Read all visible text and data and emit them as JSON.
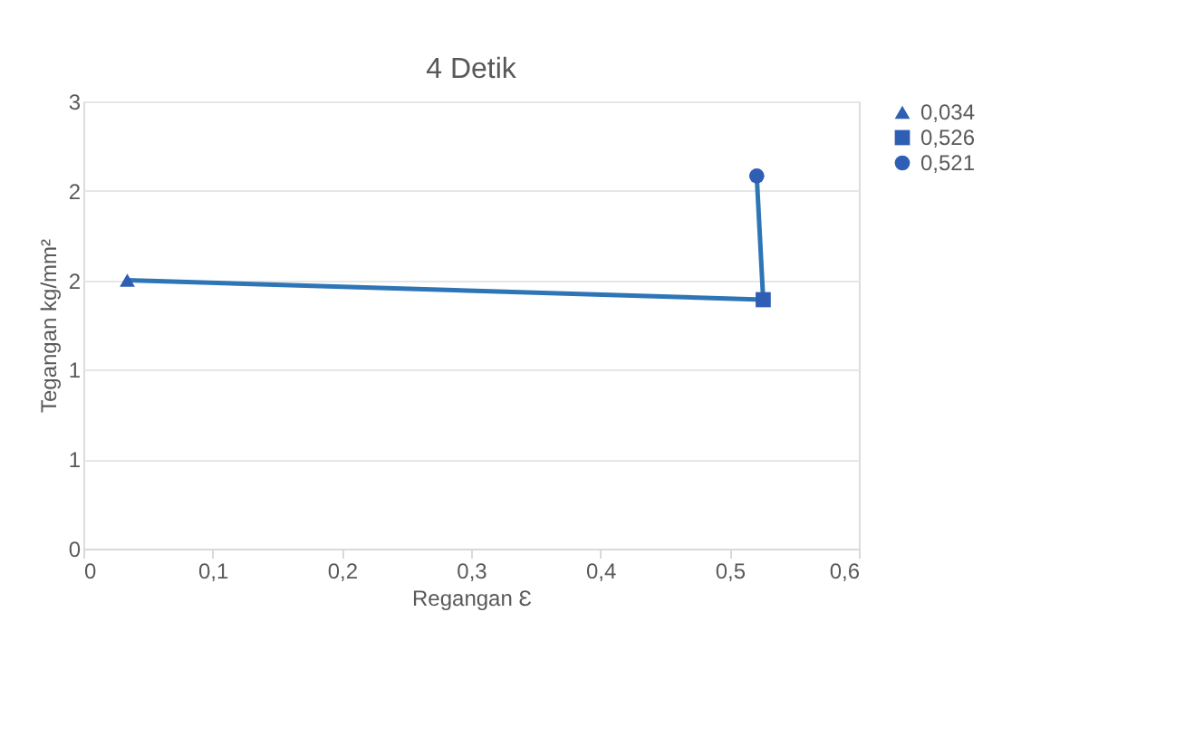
{
  "chart_data": {
    "type": "line",
    "title": "4 Detik",
    "xlabel": "Regangan Ɛ",
    "ylabel": "Tegangan kg/mm²",
    "xlim": [
      0,
      0.6
    ],
    "xticks": [
      {
        "value": 0,
        "label": "0"
      },
      {
        "value": 0.1,
        "label": "0,1"
      },
      {
        "value": 0.2,
        "label": "0,2"
      },
      {
        "value": 0.3,
        "label": "0,3"
      },
      {
        "value": 0.4,
        "label": "0,4"
      },
      {
        "value": 0.5,
        "label": "0,5"
      },
      {
        "value": 0.6,
        "label": "0,6"
      }
    ],
    "ylim": [
      0,
      3
    ],
    "yticks": [
      0,
      {
        "value": 0.6,
        "label": "1"
      },
      {
        "value": 1.2,
        "label": "1"
      },
      {
        "value": 1.8,
        "label": "2"
      },
      {
        "value": 2.4,
        "label": "2"
      },
      3
    ],
    "grid": "y",
    "legend": "right",
    "series": [
      {
        "color": "#2e75b6",
        "x": [
          0.034,
          0.526,
          0.521
        ],
        "values": [
          1.8,
          1.67,
          2.5
        ],
        "marker": "none",
        "line_style": "solid"
      },
      {
        "type": "scatter",
        "name": "0,034",
        "color": "#2f5eb5",
        "x": [
          0.034
        ],
        "values": [
          1.8
        ],
        "marker": "triangle"
      },
      {
        "type": "scatter",
        "name": "0,526",
        "color": "#2f5eb5",
        "x": [
          0.526
        ],
        "values": [
          1.67
        ],
        "marker": "square"
      },
      {
        "type": "scatter",
        "name": "0,521",
        "color": "#2f5eb5",
        "x": [
          0.521
        ],
        "values": [
          2.5
        ],
        "marker": "circle"
      }
    ]
  }
}
